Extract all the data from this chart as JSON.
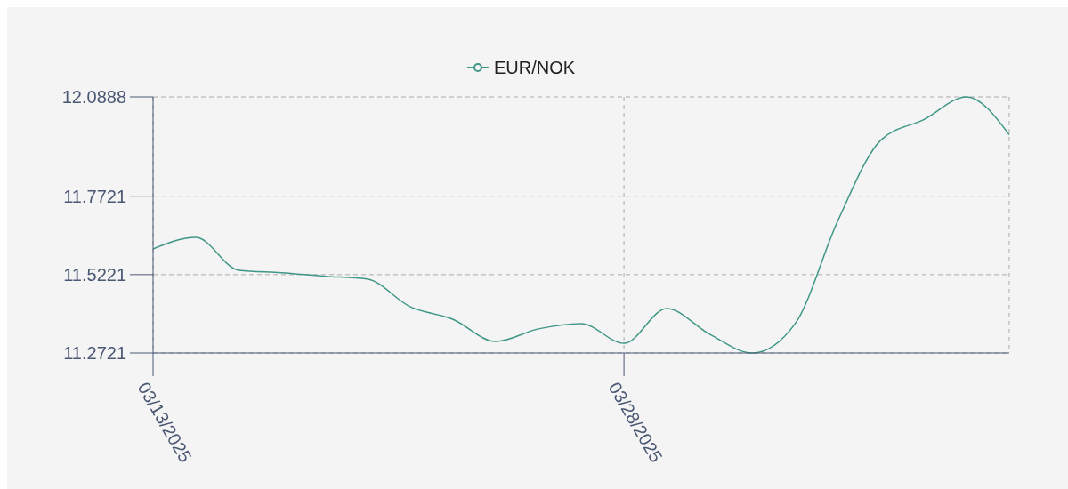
{
  "chart_data": {
    "type": "line",
    "categories": [
      "03/13/2025",
      null,
      null,
      null,
      null,
      null,
      null,
      null,
      null,
      null,
      null,
      "03/28/2025",
      null,
      null,
      null,
      null,
      null,
      null,
      null,
      null,
      null
    ],
    "series": [
      {
        "name": "EUR/NOK",
        "color": "#3f9786",
        "values": [
          11.604,
          11.641,
          11.536,
          11.528,
          11.517,
          11.508,
          11.42,
          11.38,
          11.309,
          11.349,
          11.366,
          11.303,
          11.414,
          11.332,
          11.2721,
          11.366,
          11.695,
          11.951,
          12.016,
          12.0888,
          11.968
        ]
      }
    ],
    "ylim": [
      11.2721,
      12.0888
    ],
    "yticks": [
      11.2721,
      11.5221,
      11.7721,
      12.0888
    ],
    "grid": true,
    "legend": "top",
    "marker": "none",
    "line_style": "solid"
  }
}
